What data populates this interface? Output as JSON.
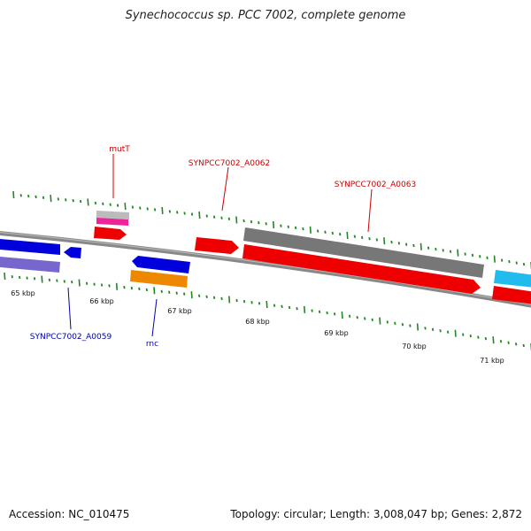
{
  "title": "Synechococcus sp. PCC 7002, complete genome",
  "footer": {
    "accession": "Accession: NC_010475",
    "summary": "Topology: circular; Length: 3,008,047 bp; Genes: 2,872"
  },
  "colors": {
    "red": "#ee0000",
    "blue": "#0000dd",
    "purple": "#7766cc",
    "orange": "#ee8800",
    "gray": "#777777",
    "silver": "#bbbbbb",
    "magenta": "#ee2299",
    "cyan": "#22bbee",
    "tick": "#228822"
  },
  "scale": {
    "labels": [
      "65 kbp",
      "66 kbp",
      "67 kbp",
      "68 kbp",
      "69 kbp",
      "70 kbp",
      "71 kbp"
    ]
  },
  "genes": {
    "mutT": "mutT",
    "a0062": "SYNPCC7002_A0062",
    "a0063": "SYNPCC7002_A0063",
    "a0059": "SYNPCC7002_A0059",
    "rnc": "rnc"
  }
}
